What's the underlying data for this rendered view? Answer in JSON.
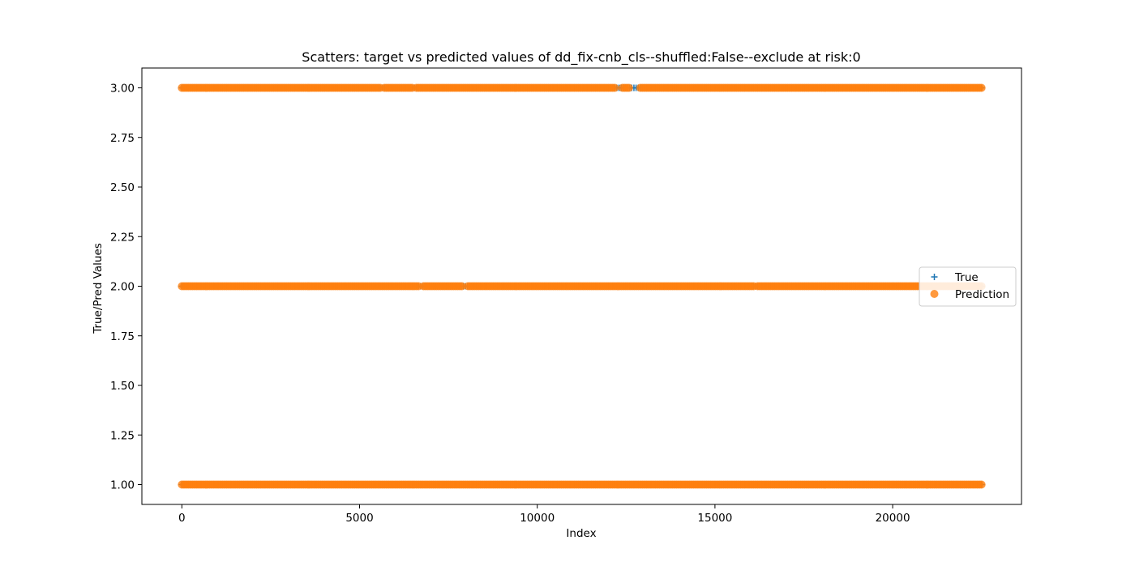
{
  "chart_data": {
    "type": "scatter",
    "title": "Scatters: target vs predicted values of dd_fix-cnb_cls--shuffled:False--exclude at risk:0",
    "xlabel": "Index",
    "ylabel": "True/Pred Values",
    "xlim": [
      -1125,
      23625
    ],
    "ylim": [
      0.9,
      3.1
    ],
    "x_ticks": [
      0,
      5000,
      10000,
      15000,
      20000
    ],
    "x_tick_labels": [
      "0",
      "5000",
      "10000",
      "15000",
      "20000"
    ],
    "y_ticks": [
      1.0,
      1.25,
      1.5,
      1.75,
      2.0,
      2.25,
      2.5,
      2.75,
      3.0
    ],
    "y_tick_labels": [
      "1.00",
      "1.25",
      "1.50",
      "1.75",
      "2.00",
      "2.25",
      "2.50",
      "2.75",
      "3.00"
    ],
    "grid": false,
    "legend_placement": "center-right",
    "n_points": 22500,
    "series": [
      {
        "name": "True",
        "marker": "plus",
        "color": "#1f77b4",
        "bands": [
          {
            "y": 1.0,
            "ranges": [
              [
                0,
                22500
              ]
            ]
          },
          {
            "y": 2.0,
            "ranges": [
              [
                0,
                22500
              ]
            ]
          },
          {
            "y": 3.0,
            "ranges": [
              [
                0,
                22500
              ]
            ]
          }
        ]
      },
      {
        "name": "Prediction",
        "marker": "circle",
        "color": "#ff7f0e",
        "bands": [
          {
            "y": 1.0,
            "ranges": [
              [
                0,
                22500
              ]
            ]
          },
          {
            "y": 2.0,
            "ranges": [
              [
                0,
                6700
              ],
              [
                6800,
                7900
              ],
              [
                8050,
                16100
              ],
              [
                16200,
                22500
              ]
            ]
          },
          {
            "y": 3.0,
            "ranges": [
              [
                0,
                5600
              ],
              [
                5700,
                6500
              ],
              [
                6600,
                12200
              ],
              [
                12400,
                12600
              ],
              [
                12900,
                22500
              ]
            ]
          }
        ]
      }
    ]
  }
}
